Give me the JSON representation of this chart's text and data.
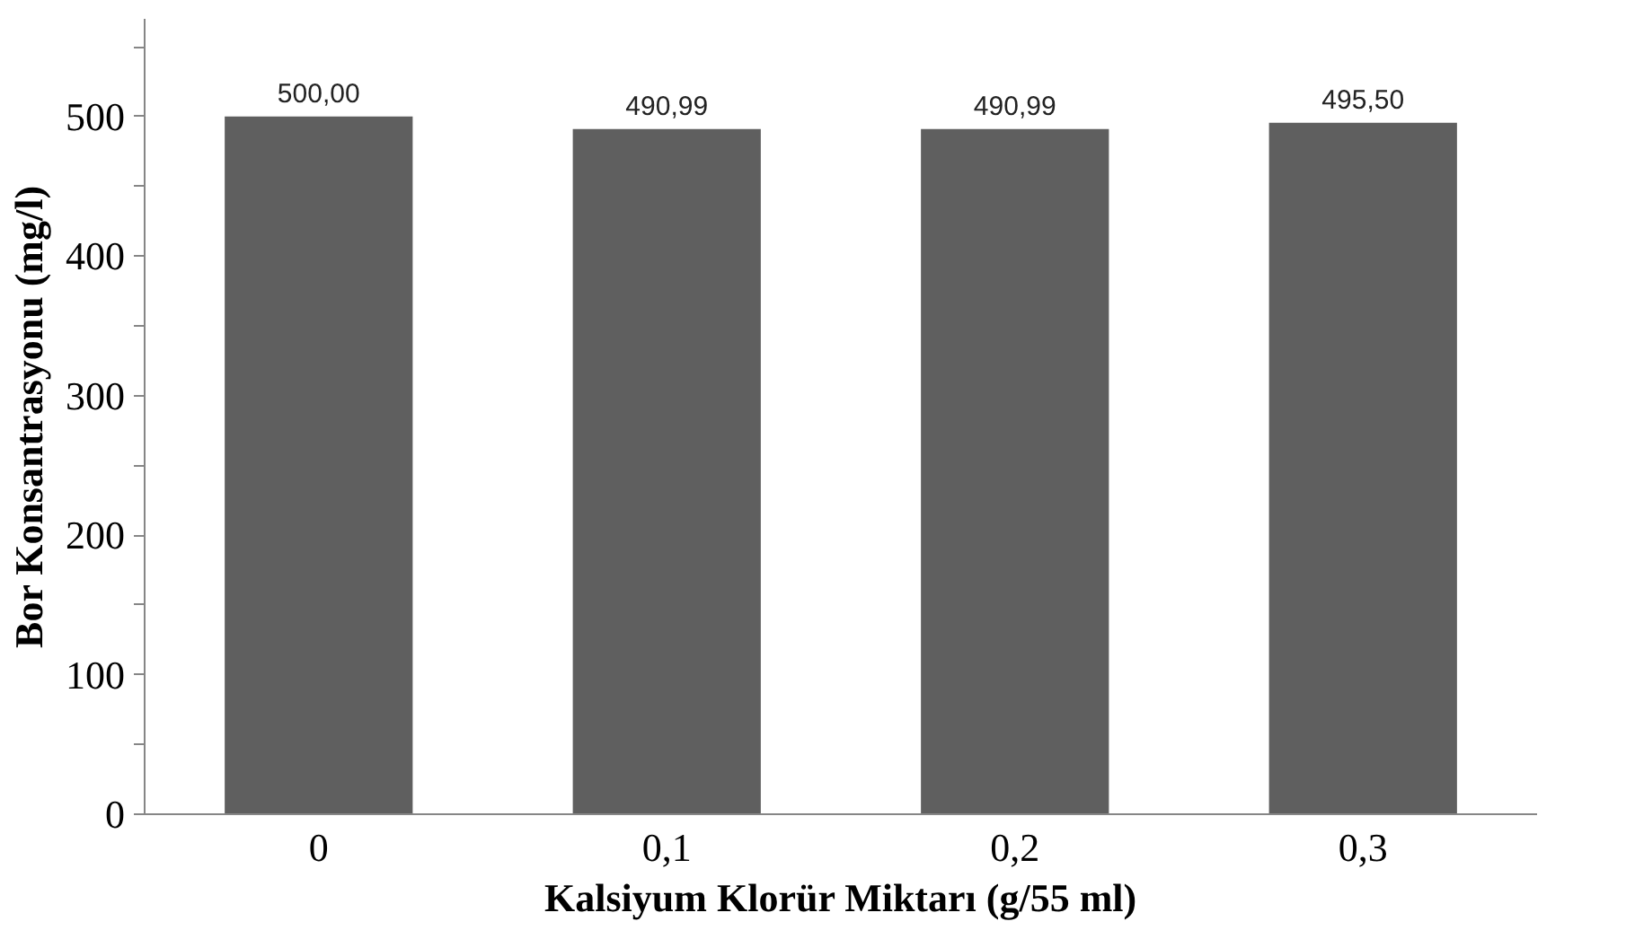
{
  "chart_data": {
    "type": "bar",
    "xlabel": "Kalsiyum Klorür Miktarı (g/55 ml)",
    "ylabel": "Bor Konsantrasyonu (mg/l)",
    "categories": [
      "0",
      "0,1",
      "0,2",
      "0,3"
    ],
    "values": [
      500.0,
      490.99,
      490.99,
      495.5
    ],
    "value_labels": [
      "500,00",
      "490,99",
      "490,99",
      "495,50"
    ],
    "color": "#5f5f5f",
    "ylim": [
      0,
      570
    ],
    "yticks": [
      0,
      {
        "value": 50,
        "label": null
      },
      100,
      {
        "value": 150,
        "label": null
      },
      200,
      {
        "value": 250,
        "label": null
      },
      300,
      {
        "value": 350,
        "label": null
      },
      400,
      {
        "value": 450,
        "label": null
      },
      500,
      {
        "value": 550,
        "label": null
      }
    ],
    "grid": false
  }
}
